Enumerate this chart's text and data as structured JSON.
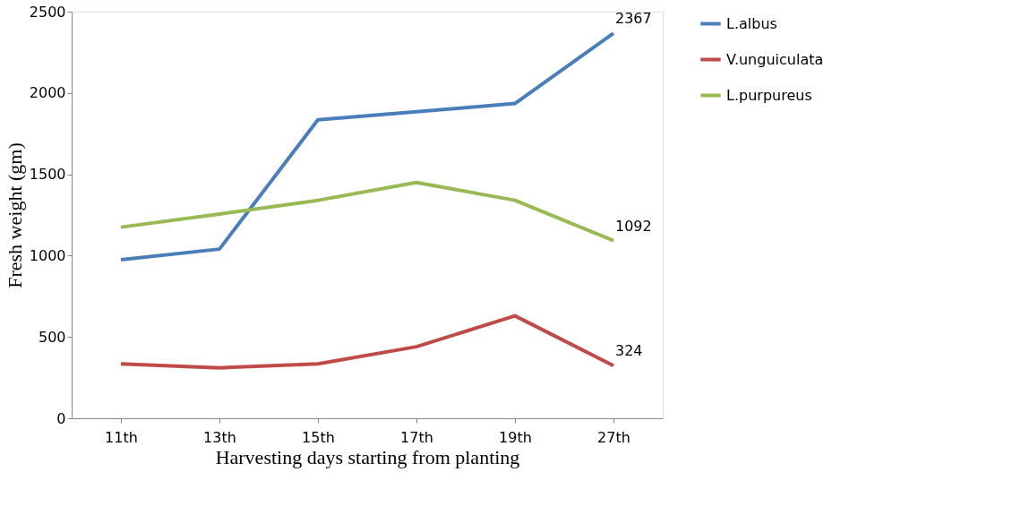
{
  "chart_data": {
    "type": "line",
    "xlabel": "Harvesting days starting from planting",
    "ylabel": "Fresh weight  (gm)",
    "categories": [
      "11th",
      "13th",
      "15th",
      "17th",
      "19th",
      "27th"
    ],
    "series": [
      {
        "name": "L.albus",
        "color": "#4a7ebb",
        "values": [
          975,
          1040,
          1835,
          1885,
          1935,
          2367
        ],
        "value_labels": [
          null,
          null,
          null,
          null,
          null,
          "2367"
        ]
      },
      {
        "name": "V.unguiculata",
        "color": "#be4b48",
        "values": [
          335,
          310,
          335,
          440,
          630,
          324
        ],
        "value_labels": [
          null,
          null,
          null,
          null,
          null,
          "324"
        ]
      },
      {
        "name": "L.purpureus",
        "color": "#98b954",
        "values": [
          1175,
          1255,
          1340,
          1450,
          1340,
          1092
        ],
        "value_labels": [
          null,
          null,
          null,
          null,
          null,
          "1092"
        ]
      }
    ],
    "ylim": [
      0,
      2500
    ],
    "yticks": [
      0,
      500,
      1000,
      1500,
      2000,
      2500
    ],
    "grid": false,
    "legend": "right",
    "marker": "none",
    "line_style": "solid"
  }
}
